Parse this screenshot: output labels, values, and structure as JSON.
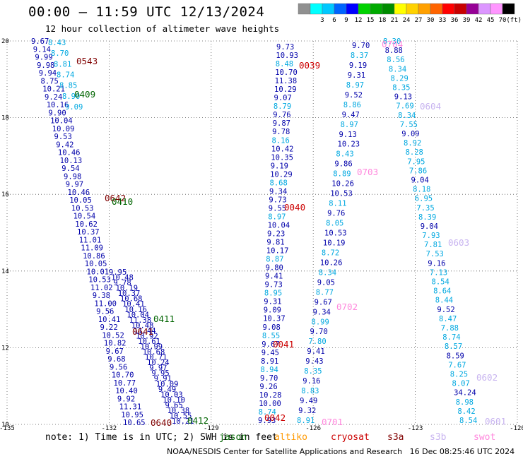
{
  "header": {
    "title": "00:00 – 11:59 UTC 12/13/2024",
    "subtitle": "12 hour collection of altimeter wave heights"
  },
  "legend": {
    "unit": "(ft)",
    "bins": [
      {
        "color": "#909090",
        "label": ""
      },
      {
        "color": "#00ffff",
        "label": "3"
      },
      {
        "color": "#00c8ff",
        "label": "6"
      },
      {
        "color": "#0064ff",
        "label": "9"
      },
      {
        "color": "#0000ff",
        "label": "12"
      },
      {
        "color": "#00d200",
        "label": "15"
      },
      {
        "color": "#00aa00",
        "label": "18"
      },
      {
        "color": "#008c00",
        "label": "21"
      },
      {
        "color": "#ffff00",
        "label": "24"
      },
      {
        "color": "#ffd200",
        "label": "27"
      },
      {
        "color": "#ffa000",
        "label": "30"
      },
      {
        "color": "#ff6400",
        "label": "33"
      },
      {
        "color": "#ff0000",
        "label": "36"
      },
      {
        "color": "#c80000",
        "label": "39"
      },
      {
        "color": "#960096",
        "label": "42"
      },
      {
        "color": "#dc96ff",
        "label": "45"
      },
      {
        "color": "#ff96ff",
        "label": "70"
      },
      {
        "color": "#000000",
        "label": ""
      }
    ]
  },
  "map": {
    "lon_ticks": [
      "-135",
      "-132",
      "-129",
      "-126",
      "-123",
      "-120"
    ],
    "lat_ticks": [
      "20",
      "18",
      "16",
      "14",
      "12",
      "10"
    ],
    "colors": {
      "s3a": "#800000",
      "s3b": "#c8b4f0",
      "swot": "#ff88dd",
      "jason": "#006400",
      "cryosat": "#cc0000",
      "altiko": "#ff9900",
      "c_darkblue": "#0000aa",
      "c_cyan": "#00a8e0"
    },
    "track_a": {
      "color": "#0000aa",
      "values": [
        "9.67",
        "9.14",
        "9.99",
        "9.98",
        "9.94",
        "8.75",
        "10.21",
        "9.24",
        "10.16",
        "9.90",
        "10.04",
        "10.09",
        "9.53",
        "9.42",
        "10.46",
        "10.13",
        "9.54",
        "9.98",
        "9.97",
        "10.46",
        "10.05",
        "10.53",
        "10.54",
        "10.62",
        "10.37",
        "11.01",
        "11.09",
        "10.86",
        "10.05",
        "10.01",
        "10.53",
        "11.02",
        "9.38",
        "11.00",
        "9.56",
        "10.41",
        "9.22",
        "10.52",
        "10.82",
        "9.67",
        "9.68",
        "9.56",
        "10.70",
        "10.77",
        "10.40",
        "9.92",
        "11.31",
        "10.95",
        "10.65"
      ]
    },
    "track_b": {
      "color": "#0000aa",
      "values": [
        "9.95",
        "10.48",
        "9.78",
        "10.19",
        "10.37",
        "10.68",
        "10.41",
        "10.16",
        "10.04",
        "11.38",
        "10.48",
        "11.44",
        "10.92",
        "10.61",
        "10.99",
        "10.68",
        "10.71",
        "10.24",
        "9.97",
        "9.95",
        "9.91",
        "10.09",
        "9.49",
        "10.03",
        "10.10",
        "9.65",
        "10.38",
        "10.55",
        "10.21"
      ]
    },
    "track_a_cyan": {
      "color": "#00a8e0",
      "values": [
        "8.43",
        "8.70",
        "8.81",
        "8.74",
        "8.85",
        "8.90",
        "9.09"
      ]
    },
    "track_c": {
      "dark": [
        "9.73",
        "10.93",
        "10.70",
        "11.38",
        "10.29",
        "9.07",
        "9.76",
        "9.87",
        "9.78",
        "10.42",
        "10.35",
        "9.19",
        "10.29",
        "9.34",
        "9.73",
        "9.55",
        "10.04",
        "9.23",
        "9.81",
        "10.17",
        "9.80",
        "9.41",
        "9.73",
        "9.31",
        "9.09",
        "10.37",
        "9.08",
        "9.67",
        "9.45",
        "8.91",
        "9.70",
        "9.26",
        "10.28",
        "10.00",
        "9.93"
      ],
      "cyan": [
        "8.48",
        "8.79",
        "8.16",
        "8.68",
        "8.97",
        "8.87",
        "8.95",
        "8.55",
        "8.94",
        "8.74"
      ]
    },
    "track_d": {
      "dark": [
        "9.70",
        "9.19",
        "9.31",
        "9.52",
        "9.47",
        "9.13",
        "10.23",
        "9.86",
        "10.26",
        "10.53",
        "9.76",
        "10.53",
        "10.19",
        "10.26",
        "9.05",
        "9.67",
        "9.34",
        "9.70",
        "9.41",
        "9.43",
        "9.16",
        "9.49",
        "9.32"
      ],
      "cyan": [
        "8.37",
        "8.97",
        "8.86",
        "8.97",
        "8.43",
        "8.89",
        "8.11",
        "8.05",
        "8.72",
        "8.34",
        "8.77",
        "8.99",
        "7.80",
        "8.35",
        "8.83",
        "8.91"
      ]
    },
    "track_e": {
      "dark": [
        "8.88",
        "9.13",
        "9.09",
        "9.04",
        "9.04",
        "9.16",
        "9.52",
        "8.59",
        "34.24"
      ],
      "cyan": [
        "8.30",
        "8.56",
        "8.34",
        "8.29",
        "8.35",
        "7.69",
        "8.34",
        "7.55",
        "8.92",
        "8.28",
        "7.95",
        "7.86",
        "8.18",
        "6.95",
        "7.35",
        "8.39",
        "7.93",
        "7.81",
        "7.53",
        "7.13",
        "8.54",
        "8.64",
        "8.44",
        "8.47",
        "7.88",
        "8.74",
        "8.57",
        "7.67",
        "8.25",
        "8.07",
        "8.98",
        "8.42",
        "8.54"
      ]
    },
    "passes": [
      {
        "label": "0543",
        "sat": "s3a"
      },
      {
        "label": "0409",
        "sat": "jason"
      },
      {
        "label": "0642",
        "sat": "s3a"
      },
      {
        "label": "0410",
        "sat": "jason"
      },
      {
        "label": "0411",
        "sat": "jason"
      },
      {
        "label": "0641",
        "sat": "s3a"
      },
      {
        "label": "0640",
        "sat": "s3a"
      },
      {
        "label": "0412",
        "sat": "jason"
      },
      {
        "label": "0039",
        "sat": "cryosat"
      },
      {
        "label": "0040",
        "sat": "cryosat"
      },
      {
        "label": "0041",
        "sat": "cryosat"
      },
      {
        "label": "0042",
        "sat": "cryosat"
      },
      {
        "label": "0704",
        "sat": "swot"
      },
      {
        "label": "0703",
        "sat": "swot"
      },
      {
        "label": "0702",
        "sat": "swot"
      },
      {
        "label": "0701",
        "sat": "swot"
      },
      {
        "label": "0604",
        "sat": "s3b"
      },
      {
        "label": "0603",
        "sat": "s3b"
      },
      {
        "label": "0602",
        "sat": "s3b"
      },
      {
        "label": "0601",
        "sat": "s3b"
      }
    ]
  },
  "note": {
    "text": "note: 1) Time is in UTC; 2) SWH is in feet",
    "sources": [
      {
        "name": "jason",
        "color": "#006400"
      },
      {
        "name": "altiko",
        "color": "#ff9900"
      },
      {
        "name": "cryosat",
        "color": "#cc0000"
      },
      {
        "name": "s3a",
        "color": "#800000"
      },
      {
        "name": "s3b",
        "color": "#c8b4f0"
      },
      {
        "name": "swot",
        "color": "#ff88dd"
      }
    ]
  },
  "footer": {
    "credit": "NOAA/NESDIS Center for Satellite Applications and Research",
    "timestamp": "16 Dec 08:25:46 UTC 2024"
  }
}
